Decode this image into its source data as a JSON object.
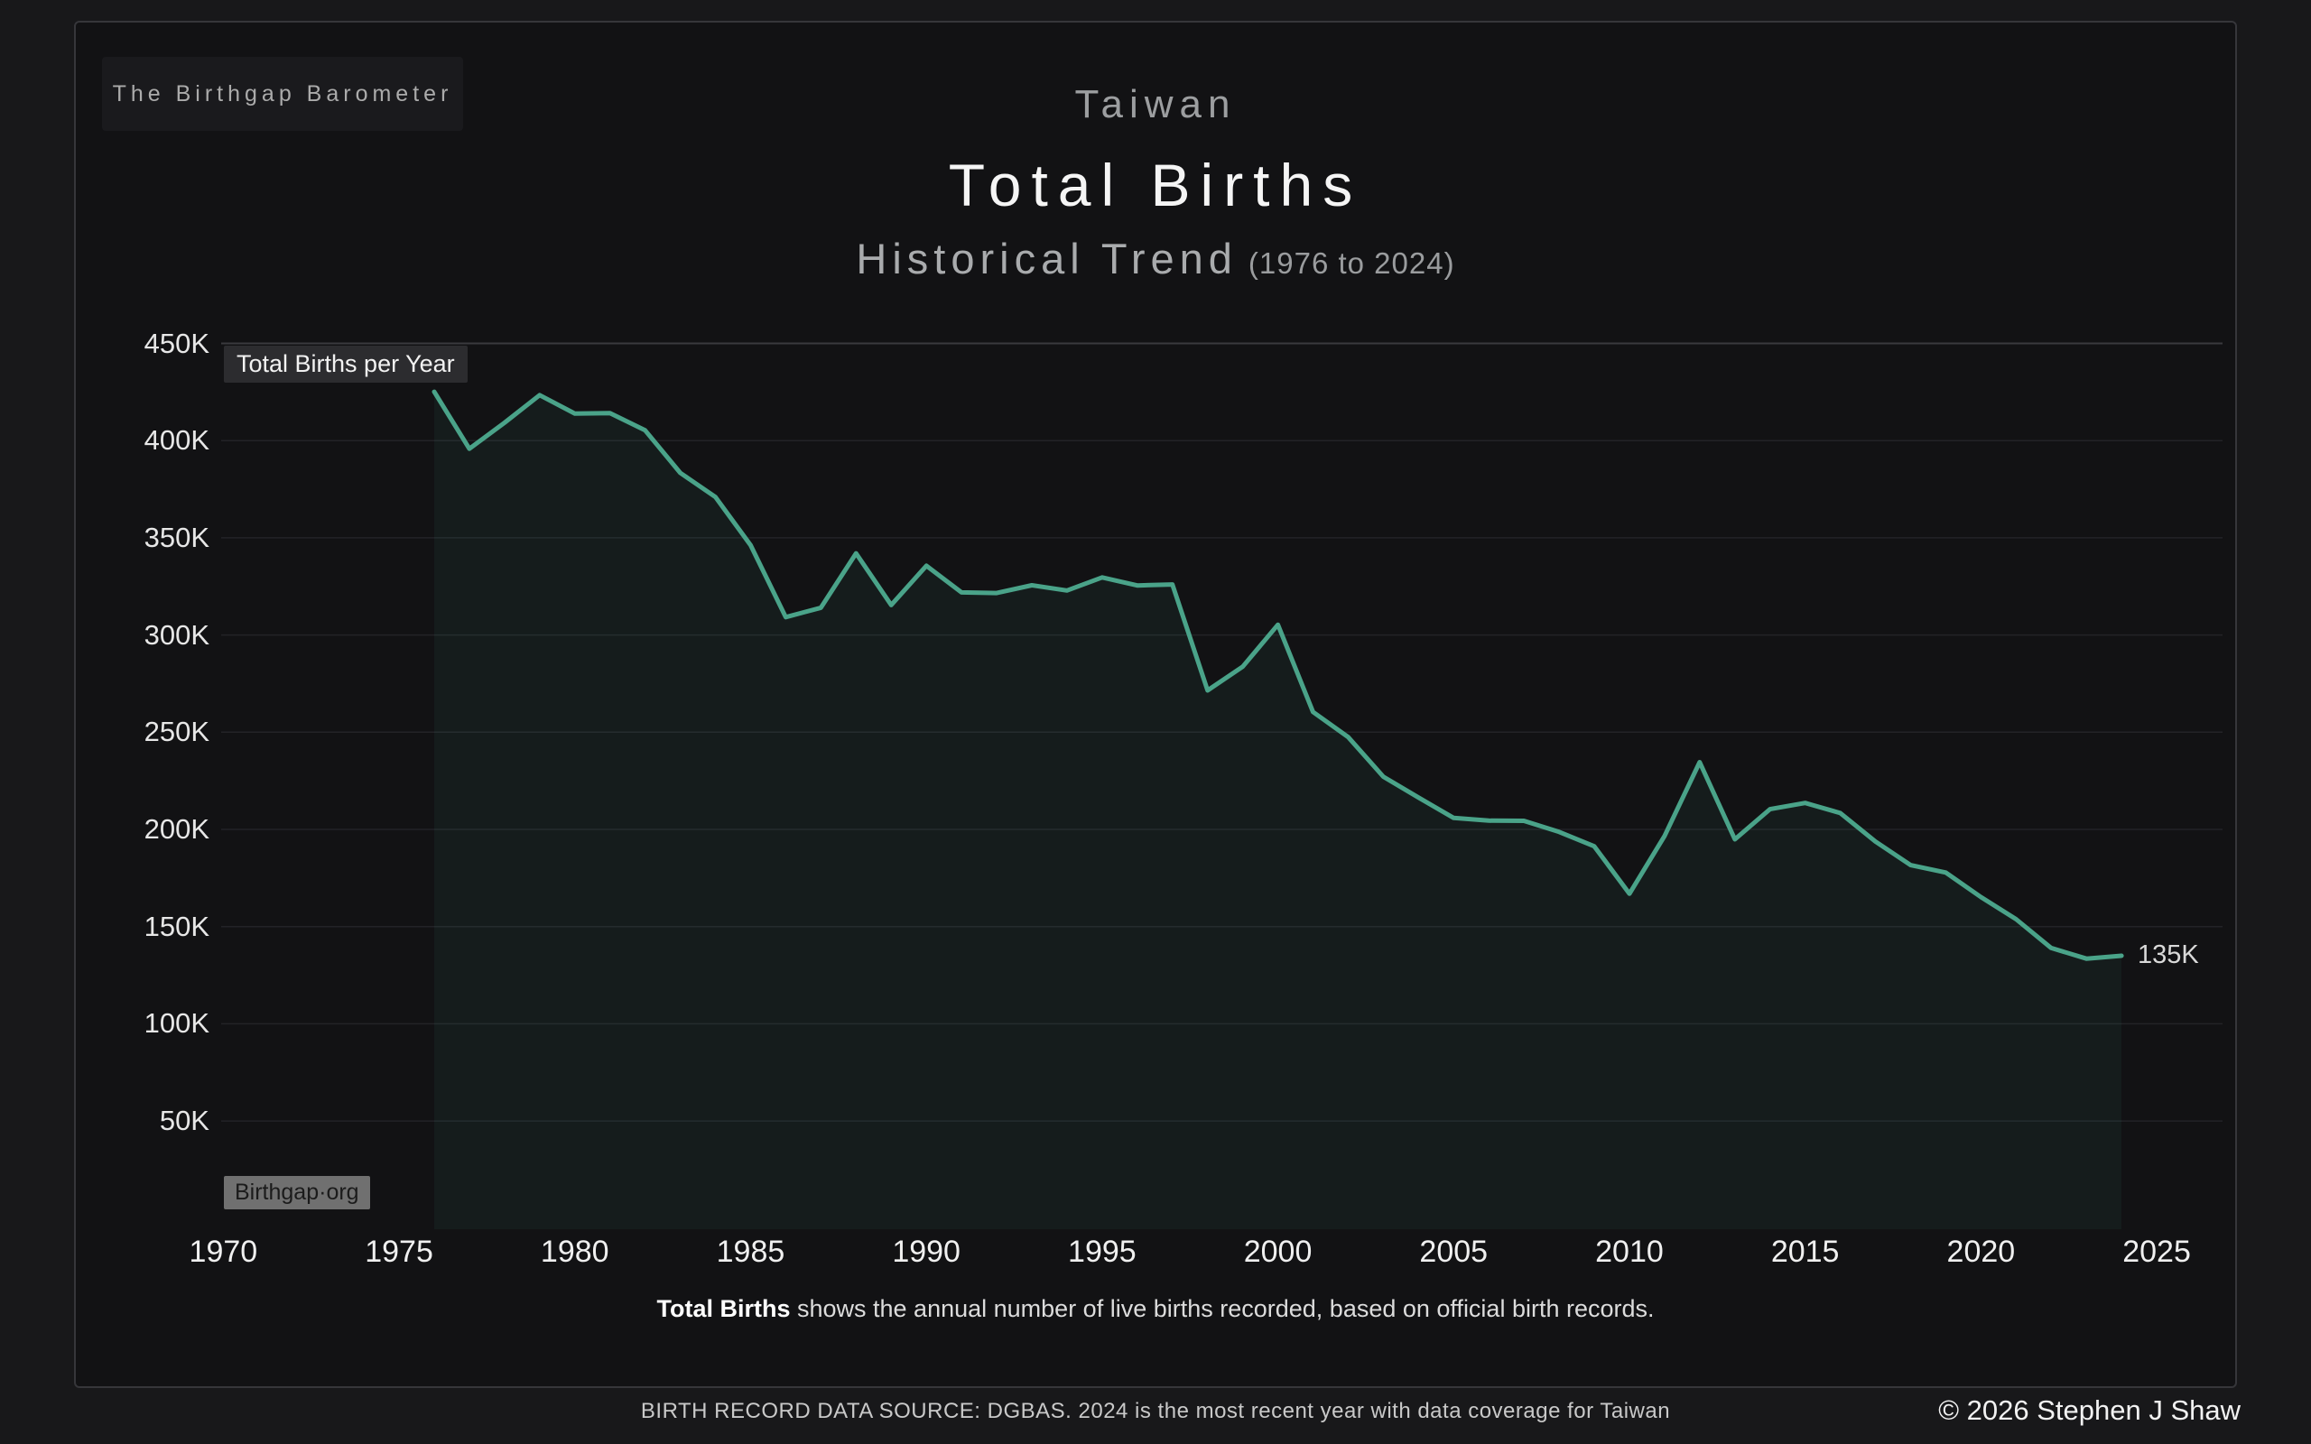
{
  "brand": {
    "label": "The Birthgap Barometer"
  },
  "header": {
    "region": "Taiwan",
    "title": "Total Births",
    "subtitle": "Historical Trend",
    "subtitle_range": "(1976 to 2024)"
  },
  "chart": {
    "series_label": "Total Births per Year",
    "watermark": "Birthgap·org",
    "end_label": "135K",
    "line_color": "#4aa389",
    "fill_color": "rgba(75,163,137,0.07)",
    "y_ticks": [
      {
        "v": 450,
        "label": "450K"
      },
      {
        "v": 400,
        "label": "400K"
      },
      {
        "v": 350,
        "label": "350K"
      },
      {
        "v": 300,
        "label": "300K"
      },
      {
        "v": 250,
        "label": "250K"
      },
      {
        "v": 200,
        "label": "200K"
      },
      {
        "v": 150,
        "label": "150K"
      },
      {
        "v": 100,
        "label": "100K"
      },
      {
        "v": 50,
        "label": "50K"
      }
    ],
    "x_ticks": [
      {
        "v": 1970,
        "label": "1970"
      },
      {
        "v": 1975,
        "label": "1975"
      },
      {
        "v": 1980,
        "label": "1980"
      },
      {
        "v": 1985,
        "label": "1985"
      },
      {
        "v": 1990,
        "label": "1990"
      },
      {
        "v": 1995,
        "label": "1995"
      },
      {
        "v": 2000,
        "label": "2000"
      },
      {
        "v": 2005,
        "label": "2005"
      },
      {
        "v": 2010,
        "label": "2010"
      },
      {
        "v": 2015,
        "label": "2015"
      },
      {
        "v": 2020,
        "label": "2020"
      },
      {
        "v": 2025,
        "label": "2025"
      }
    ]
  },
  "chart_data": {
    "type": "area",
    "title": "Taiwan — Total Births — Historical Trend (1976 to 2024)",
    "xlabel": "Year",
    "ylabel": "Total Births per Year (thousands)",
    "unit": "thousands of live births",
    "xlim": [
      1970,
      2025
    ],
    "ylim": [
      0,
      450
    ],
    "grid": "horizontal",
    "legend_position": "none",
    "final_point_label": "135K",
    "x": [
      1976,
      1977,
      1978,
      1979,
      1980,
      1981,
      1982,
      1983,
      1984,
      1985,
      1986,
      1987,
      1988,
      1989,
      1990,
      1991,
      1992,
      1993,
      1994,
      1995,
      1996,
      1997,
      1998,
      1999,
      2000,
      2001,
      2002,
      2003,
      2004,
      2005,
      2006,
      2007,
      2008,
      2009,
      2010,
      2011,
      2012,
      2013,
      2014,
      2015,
      2016,
      2017,
      2018,
      2019,
      2020,
      2021,
      2022,
      2023,
      2024
    ],
    "values": [
      425.1,
      395.8,
      409.2,
      423.4,
      413.9,
      414.1,
      405.3,
      383.4,
      371.0,
      346.2,
      309.2,
      314.0,
      342.0,
      315.4,
      335.6,
      321.9,
      321.6,
      325.6,
      322.9,
      329.6,
      325.5,
      326.0,
      271.5,
      283.7,
      305.3,
      260.4,
      247.5,
      227.1,
      216.4,
      205.9,
      204.5,
      204.4,
      198.7,
      191.3,
      166.9,
      196.6,
      234.6,
      194.9,
      210.4,
      213.6,
      208.4,
      193.8,
      181.6,
      177.8,
      165.2,
      153.8,
      139.0,
      133.5,
      135.0
    ]
  },
  "caption": {
    "bold": "Total Births",
    "rest": " shows the annual number of live births recorded, based on official birth records."
  },
  "footer": {
    "source": "BIRTH RECORD DATA SOURCE: DGBAS. 2024 is the most recent year with data coverage for Taiwan",
    "copyright": "© 2026 Stephen J Shaw"
  }
}
